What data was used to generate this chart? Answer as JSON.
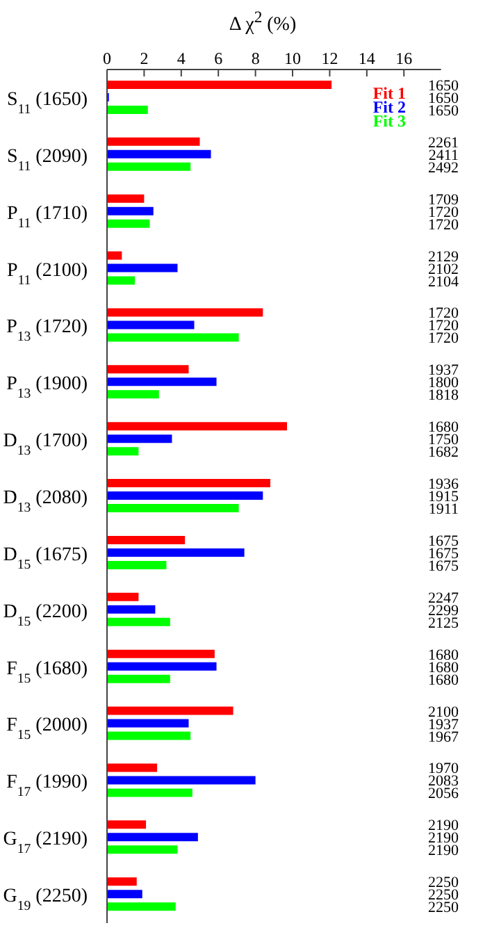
{
  "chart_data": {
    "type": "bar",
    "orientation": "horizontal",
    "title": "Δ χ$^{2}$ (%)",
    "categories": [
      "S$_{11}$ (1650)",
      "S$_{11}$ (2090)",
      "P$_{11}$ (1710)",
      "P$_{11}$ (2100)",
      "P$_{13}$ (1720)",
      "P$_{13}$ (1900)",
      "D$_{13}$ (1700)",
      "D$_{13}$ (2080)",
      "D$_{15}$ (1675)",
      "D$_{15}$ (2200)",
      "F$_{15}$ (1680)",
      "F$_{15}$ (2000)",
      "F$_{17}$ (1990)",
      "G$_{17}$ (2190)",
      "G$_{19}$ (2250)"
    ],
    "series": [
      {
        "name": "Fit 1",
        "color": "#ff0000",
        "values": [
          12.1,
          5.0,
          2.0,
          0.8,
          8.4,
          4.4,
          9.7,
          8.8,
          4.2,
          1.7,
          5.8,
          6.8,
          2.7,
          2.1,
          1.6
        ]
      },
      {
        "name": "Fit 2",
        "color": "#0000ff",
        "values": [
          0.1,
          5.6,
          2.5,
          3.8,
          4.7,
          5.9,
          3.5,
          8.4,
          7.4,
          2.6,
          5.9,
          4.4,
          8.0,
          4.9,
          1.9
        ]
      },
      {
        "name": "Fit 3",
        "color": "#00ff00",
        "values": [
          2.2,
          4.5,
          2.3,
          1.5,
          7.1,
          2.8,
          1.7,
          7.1,
          3.2,
          3.4,
          3.4,
          4.5,
          4.6,
          3.8,
          3.7
        ]
      }
    ],
    "annotations": [
      "1650",
      "1650",
      "1650",
      "2261",
      "2411",
      "2492",
      "1709",
      "1720",
      "1720",
      "2129",
      "2102",
      "2104",
      "1720",
      "1720",
      "1720",
      "1937",
      "1800",
      "1818",
      "1680",
      "1750",
      "1682",
      "1936",
      "1915",
      "1911",
      "1675",
      "1675",
      "1675",
      "2247",
      "2299",
      "2125",
      "1680",
      "1680",
      "1680",
      "2100",
      "1937",
      "1967",
      "1970",
      "2083",
      "2056",
      "2190",
      "2190",
      "2190",
      "2250",
      "2250",
      "2250"
    ],
    "xlim": [
      0,
      18
    ],
    "xticks": [
      0,
      2,
      4,
      6,
      8,
      10,
      12,
      14,
      16
    ],
    "legend": "top right"
  }
}
